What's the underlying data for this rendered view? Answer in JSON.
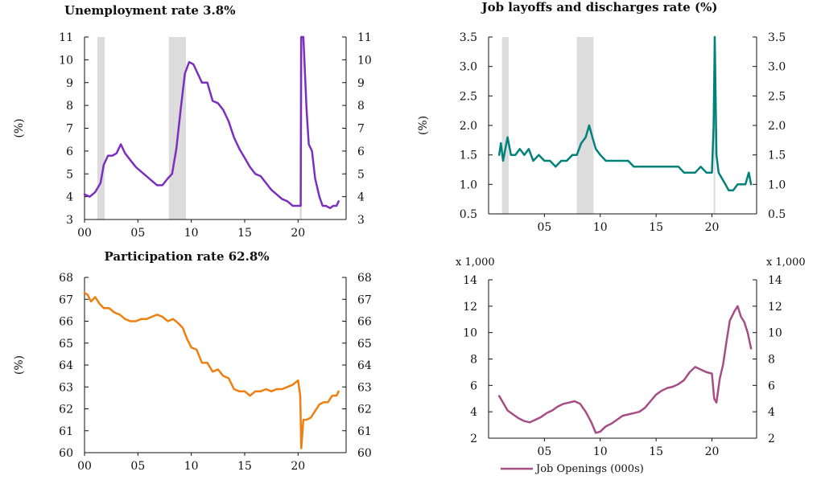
{
  "colors": {
    "unemployment": "#7b2fbe",
    "layoffs": "#00827a",
    "participation": "#ee7f10",
    "openings": "#a64d85",
    "recession": "#dcdcdc"
  },
  "chart_data": [
    {
      "id": "unemployment",
      "type": "line",
      "title": "Unemployment rate 3.8%",
      "ylabel": "(%)",
      "unit_label": "",
      "xlim": [
        2000,
        2024.5
      ],
      "ylim": [
        3,
        11
      ],
      "yticks": [
        3,
        4,
        5,
        6,
        7,
        8,
        9,
        10,
        11
      ],
      "ytick_labels": [
        "3",
        "4",
        "5",
        "6",
        "7",
        "8",
        "9",
        "10",
        "11"
      ],
      "xticks": [
        2000,
        2005,
        2010,
        2015,
        2020
      ],
      "xtick_labels": [
        "00",
        "05",
        "10",
        "15",
        "20"
      ],
      "right_axis": true,
      "recessions": [
        [
          2001.2,
          2001.9
        ],
        [
          2007.9,
          2009.5
        ],
        [
          2020.15,
          2020.35
        ]
      ],
      "series": [
        {
          "name": "",
          "x": [
            2000.0,
            2000.5,
            2001.0,
            2001.5,
            2001.8,
            2002.2,
            2002.6,
            2003.0,
            2003.4,
            2003.8,
            2004.3,
            2004.8,
            2005.3,
            2005.8,
            2006.3,
            2006.8,
            2007.3,
            2007.8,
            2008.2,
            2008.6,
            2009.0,
            2009.4,
            2009.8,
            2010.2,
            2010.6,
            2011.0,
            2011.5,
            2012.0,
            2012.5,
            2013.0,
            2013.5,
            2014.0,
            2014.5,
            2015.0,
            2015.5,
            2016.0,
            2016.5,
            2017.0,
            2017.5,
            2018.0,
            2018.5,
            2019.0,
            2019.5,
            2020.0,
            2020.25,
            2020.3,
            2020.5,
            2020.8,
            2021.0,
            2021.3,
            2021.6,
            2022.0,
            2022.3,
            2022.6,
            2023.0,
            2023.3,
            2023.6,
            2023.8
          ],
          "y": [
            4.1,
            4.0,
            4.2,
            4.6,
            5.4,
            5.8,
            5.8,
            5.9,
            6.3,
            5.9,
            5.6,
            5.3,
            5.1,
            4.9,
            4.7,
            4.5,
            4.5,
            4.8,
            5.0,
            6.1,
            7.8,
            9.4,
            9.9,
            9.8,
            9.4,
            9.0,
            9.0,
            8.2,
            8.1,
            7.8,
            7.3,
            6.6,
            6.1,
            5.7,
            5.3,
            5.0,
            4.9,
            4.6,
            4.3,
            4.1,
            3.9,
            3.8,
            3.6,
            3.6,
            3.6,
            11.0,
            11.0,
            7.8,
            6.3,
            6.0,
            4.8,
            4.0,
            3.6,
            3.6,
            3.5,
            3.6,
            3.6,
            3.8
          ]
        }
      ]
    },
    {
      "id": "layoffs",
      "type": "line",
      "title": "Job layoffs and discharges rate (%)",
      "ylabel": "(%)",
      "unit_label": "",
      "xlim": [
        2000,
        2024
      ],
      "ylim": [
        0.5,
        3.5
      ],
      "yticks": [
        0.5,
        1.0,
        1.5,
        2.0,
        2.5,
        3.0,
        3.5
      ],
      "ytick_labels": [
        "0.5",
        "1.0",
        "1.5",
        "2.0",
        "2.5",
        "3.0",
        "3.5"
      ],
      "xticks": [
        2005,
        2010,
        2015,
        2020
      ],
      "xtick_labels": [
        "05",
        "10",
        "15",
        "20"
      ],
      "right_axis": true,
      "recessions": [
        [
          2001.2,
          2001.8
        ],
        [
          2007.9,
          2009.4
        ],
        [
          2020.15,
          2020.3
        ]
      ],
      "series": [
        {
          "name": "",
          "x": [
            2000.95,
            2001.1,
            2001.3,
            2001.5,
            2001.7,
            2002.0,
            2002.4,
            2002.8,
            2003.2,
            2003.6,
            2004.0,
            2004.5,
            2005.0,
            2005.5,
            2006.0,
            2006.5,
            2007.0,
            2007.5,
            2007.9,
            2008.3,
            2008.7,
            2009.0,
            2009.3,
            2009.6,
            2010.0,
            2010.5,
            2011.0,
            2011.5,
            2012.0,
            2012.5,
            2013.0,
            2013.5,
            2014.0,
            2014.5,
            2015.0,
            2015.5,
            2016.0,
            2016.5,
            2017.0,
            2017.5,
            2018.0,
            2018.5,
            2019.0,
            2019.5,
            2020.0,
            2020.15,
            2020.25,
            2020.4,
            2020.6,
            2020.9,
            2021.2,
            2021.5,
            2021.9,
            2022.3,
            2022.7,
            2023.0,
            2023.3,
            2023.5
          ],
          "y": [
            1.5,
            1.7,
            1.4,
            1.6,
            1.8,
            1.5,
            1.5,
            1.6,
            1.5,
            1.6,
            1.4,
            1.5,
            1.4,
            1.4,
            1.3,
            1.4,
            1.4,
            1.5,
            1.5,
            1.7,
            1.8,
            2.0,
            1.8,
            1.6,
            1.5,
            1.4,
            1.4,
            1.4,
            1.4,
            1.4,
            1.3,
            1.3,
            1.3,
            1.3,
            1.3,
            1.3,
            1.3,
            1.3,
            1.3,
            1.2,
            1.2,
            1.2,
            1.3,
            1.2,
            1.2,
            2.0,
            3.5,
            1.5,
            1.2,
            1.1,
            1.0,
            0.9,
            0.9,
            1.0,
            1.0,
            1.0,
            1.2,
            1.0
          ]
        }
      ]
    },
    {
      "id": "participation",
      "type": "line",
      "title": "Participation rate 62.8%",
      "ylabel": "(%)",
      "unit_label": "",
      "xlim": [
        2000,
        2024.5
      ],
      "ylim": [
        60,
        68
      ],
      "yticks": [
        60,
        61,
        62,
        63,
        64,
        65,
        66,
        67,
        68
      ],
      "ytick_labels": [
        "60",
        "61",
        "62",
        "63",
        "64",
        "65",
        "66",
        "67",
        "68"
      ],
      "xticks": [
        2000,
        2005,
        2010,
        2015,
        2020
      ],
      "xtick_labels": [
        "00",
        "05",
        "10",
        "15",
        "20"
      ],
      "right_axis": true,
      "recessions": [],
      "series": [
        {
          "name": "",
          "x": [
            2000.0,
            2000.3,
            2000.6,
            2001.0,
            2001.4,
            2001.8,
            2002.3,
            2002.8,
            2003.3,
            2003.8,
            2004.3,
            2004.8,
            2005.3,
            2005.8,
            2006.3,
            2006.8,
            2007.3,
            2007.8,
            2008.3,
            2008.8,
            2009.2,
            2009.6,
            2010.0,
            2010.5,
            2011.0,
            2011.5,
            2012.0,
            2012.5,
            2013.0,
            2013.5,
            2014.0,
            2014.5,
            2015.0,
            2015.5,
            2016.0,
            2016.5,
            2017.0,
            2017.5,
            2018.0,
            2018.5,
            2019.0,
            2019.5,
            2020.0,
            2020.2,
            2020.3,
            2020.5,
            2020.8,
            2021.2,
            2021.6,
            2022.0,
            2022.4,
            2022.8,
            2023.2,
            2023.6,
            2023.8
          ],
          "y": [
            67.3,
            67.2,
            66.9,
            67.1,
            66.8,
            66.6,
            66.6,
            66.4,
            66.3,
            66.1,
            66.0,
            66.0,
            66.1,
            66.1,
            66.2,
            66.3,
            66.2,
            66.0,
            66.1,
            65.9,
            65.7,
            65.2,
            64.8,
            64.7,
            64.1,
            64.1,
            63.7,
            63.8,
            63.5,
            63.4,
            62.9,
            62.8,
            62.8,
            62.6,
            62.8,
            62.8,
            62.9,
            62.8,
            62.9,
            62.9,
            63.0,
            63.1,
            63.3,
            62.6,
            60.2,
            61.5,
            61.5,
            61.6,
            61.9,
            62.2,
            62.3,
            62.3,
            62.6,
            62.6,
            62.8
          ]
        }
      ]
    },
    {
      "id": "openings",
      "type": "line",
      "title": "",
      "ylabel": "",
      "unit_label": "x 1,000",
      "legend_label": "Job Openings (000s)",
      "legend": "bottom",
      "xlim": [
        2000,
        2024
      ],
      "ylim": [
        2,
        14
      ],
      "yticks": [
        2,
        4,
        6,
        8,
        10,
        12,
        14
      ],
      "ytick_labels": [
        "2",
        "4",
        "6",
        "8",
        "10",
        "12",
        "14"
      ],
      "xticks": [
        2005,
        2010,
        2015,
        2020
      ],
      "xtick_labels": [
        "05",
        "10",
        "15",
        "20"
      ],
      "right_axis": true,
      "recessions": [],
      "series": [
        {
          "name": "Job Openings (000s)",
          "x": [
            2000.95,
            2001.3,
            2001.7,
            2002.2,
            2002.7,
            2003.2,
            2003.7,
            2004.2,
            2004.7,
            2005.2,
            2005.7,
            2006.2,
            2006.7,
            2007.2,
            2007.7,
            2008.2,
            2008.7,
            2009.2,
            2009.6,
            2010.0,
            2010.5,
            2011.0,
            2011.5,
            2012.0,
            2012.5,
            2013.0,
            2013.5,
            2014.0,
            2014.5,
            2015.0,
            2015.5,
            2016.0,
            2016.5,
            2017.0,
            2017.5,
            2018.0,
            2018.5,
            2019.0,
            2019.5,
            2020.0,
            2020.2,
            2020.4,
            2020.7,
            2021.0,
            2021.3,
            2021.6,
            2022.0,
            2022.3,
            2022.6,
            2022.9,
            2023.2,
            2023.5
          ],
          "y": [
            5.2,
            4.7,
            4.1,
            3.8,
            3.5,
            3.3,
            3.2,
            3.4,
            3.6,
            3.9,
            4.1,
            4.4,
            4.6,
            4.7,
            4.8,
            4.6,
            4.0,
            3.2,
            2.4,
            2.5,
            2.9,
            3.1,
            3.4,
            3.7,
            3.8,
            3.9,
            4.0,
            4.3,
            4.8,
            5.3,
            5.6,
            5.8,
            5.9,
            6.1,
            6.4,
            7.0,
            7.4,
            7.2,
            7.0,
            6.9,
            5.0,
            4.7,
            6.5,
            7.6,
            9.3,
            10.9,
            11.6,
            12.0,
            11.2,
            10.8,
            10.0,
            8.8
          ]
        }
      ]
    }
  ]
}
